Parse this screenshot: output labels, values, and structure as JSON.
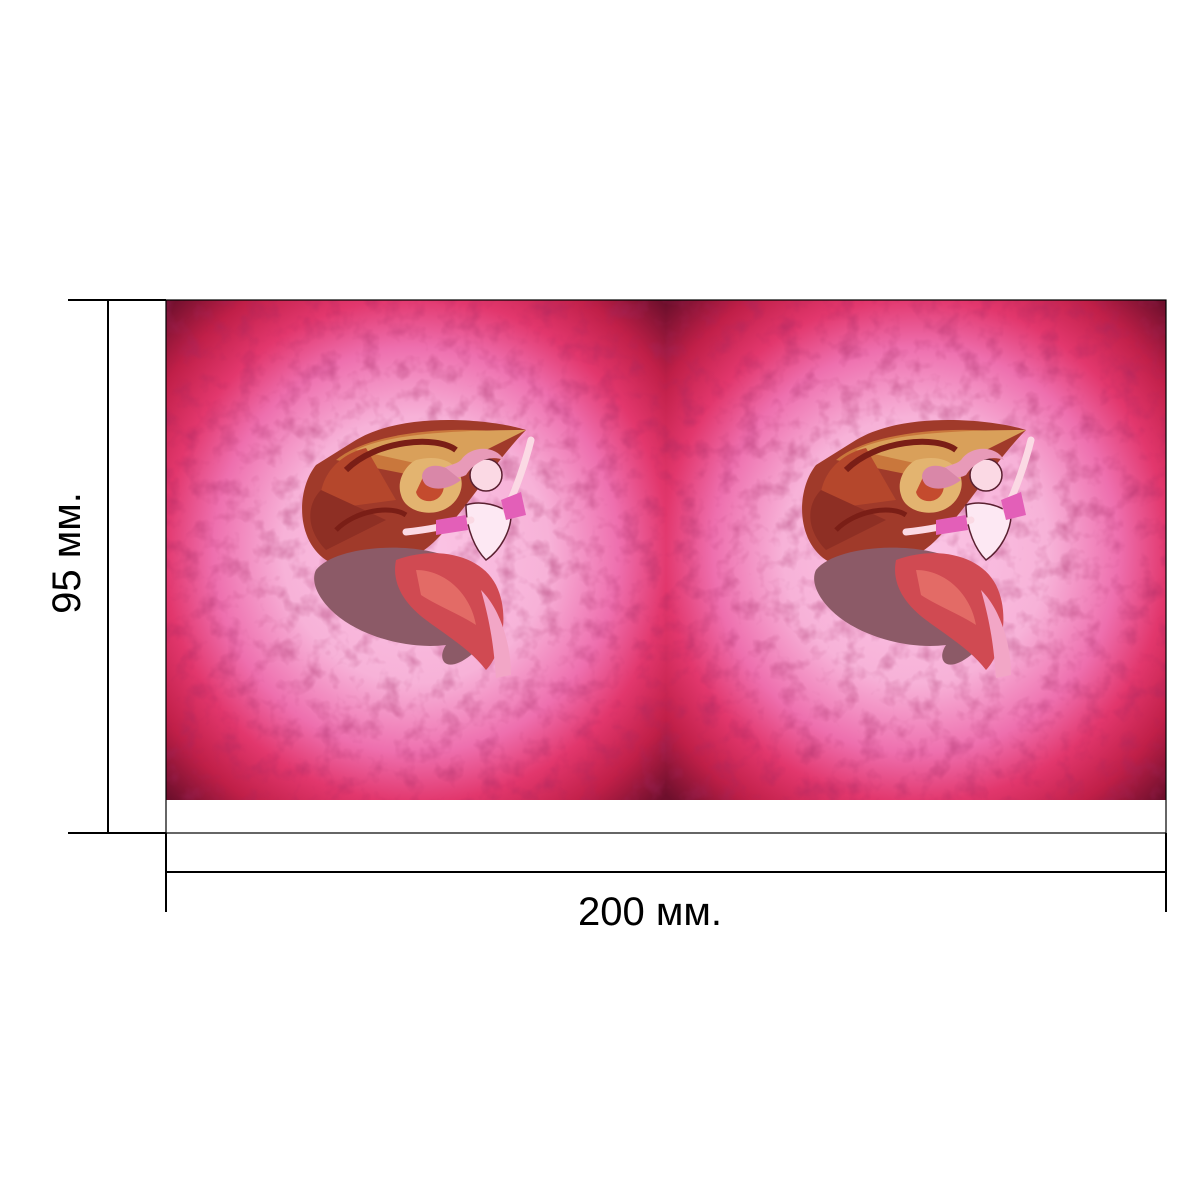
{
  "dimensions": {
    "height_label": "95 мм.",
    "width_label": "200 мм."
  },
  "print": {
    "panel_count": 2,
    "motif": "dancing-girl-with-snail-shell-icon"
  },
  "colors": {
    "frame_dark": "#7a1030",
    "frame_red": "#d82a55",
    "frame_pink": "#e8609a",
    "center_pink": "#f7b8dc",
    "line": "#000000"
  }
}
